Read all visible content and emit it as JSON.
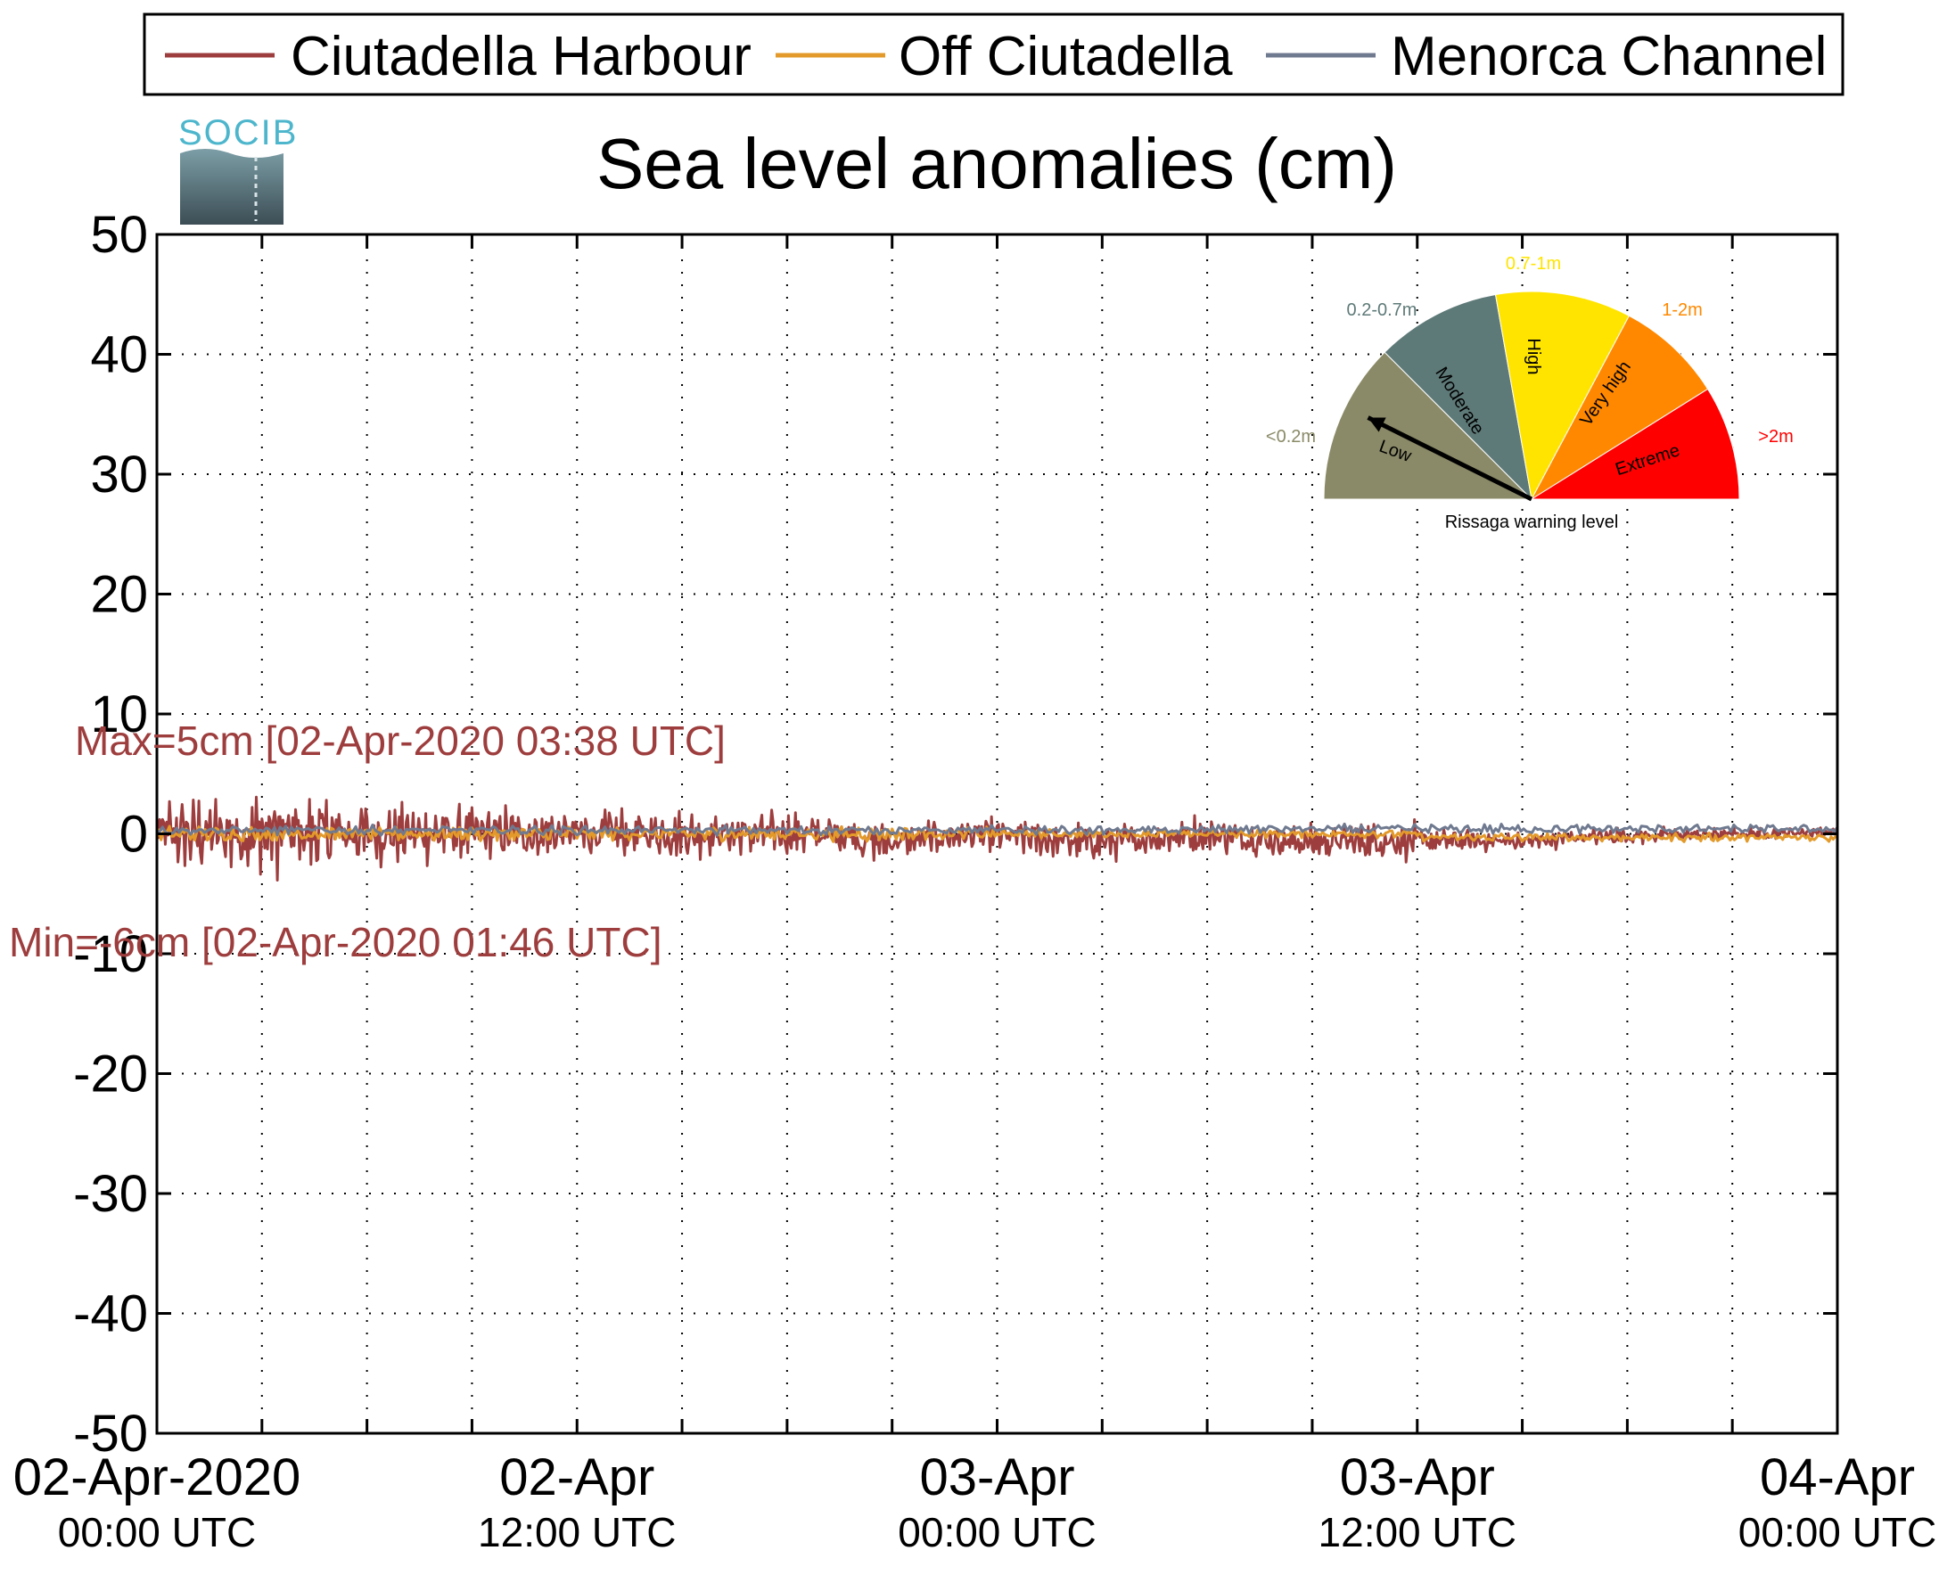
{
  "chart_data": {
    "type": "line",
    "title": "Sea level anomalies (cm)",
    "logo_text": "SOCIB",
    "ylim": [
      -50,
      50
    ],
    "yticks": [
      50,
      40,
      30,
      20,
      10,
      0,
      -10,
      -20,
      -30,
      -40,
      -50
    ],
    "xlim_hours": [
      0,
      48
    ],
    "grid": true,
    "legend_position": "top",
    "xticks": [
      {
        "hour": 0,
        "date": "02-Apr-2020",
        "time": "00:00 UTC"
      },
      {
        "hour": 12,
        "date": "02-Apr",
        "time": "12:00 UTC"
      },
      {
        "hour": 24,
        "date": "03-Apr",
        "time": "00:00 UTC"
      },
      {
        "hour": 36,
        "date": "03-Apr",
        "time": "12:00 UTC"
      },
      {
        "hour": 48,
        "date": "04-Apr",
        "time": "00:00 UTC"
      }
    ],
    "series": [
      {
        "name": "Ciutadella Harbour",
        "color": "#9e3d3d"
      },
      {
        "name": "Off Ciutadella",
        "color": "#e39a2a"
      },
      {
        "name": "Menorca Channel",
        "color": "#6f7a90"
      }
    ],
    "annotations": {
      "max": "Max=5cm [02-Apr-2020 03:38 UTC]",
      "min": "Min=-6cm [02-Apr-2020 01:46 UTC]"
    },
    "gauge": {
      "title": "Rissaga warning level",
      "sectors": [
        {
          "name": "Low",
          "range": "<0.2m",
          "color": "#8a8a68"
        },
        {
          "name": "Moderate",
          "range": "0.2-0.7m",
          "color": "#5e7a78"
        },
        {
          "name": "High",
          "range": "0.7-1m",
          "color": "#ffe400"
        },
        {
          "name": "Very high",
          "range": "1-2m",
          "color": "#ff8800"
        },
        {
          "name": "Extreme",
          "range": ">2m",
          "color": "#ff0000"
        }
      ],
      "current_level": "Low"
    }
  }
}
